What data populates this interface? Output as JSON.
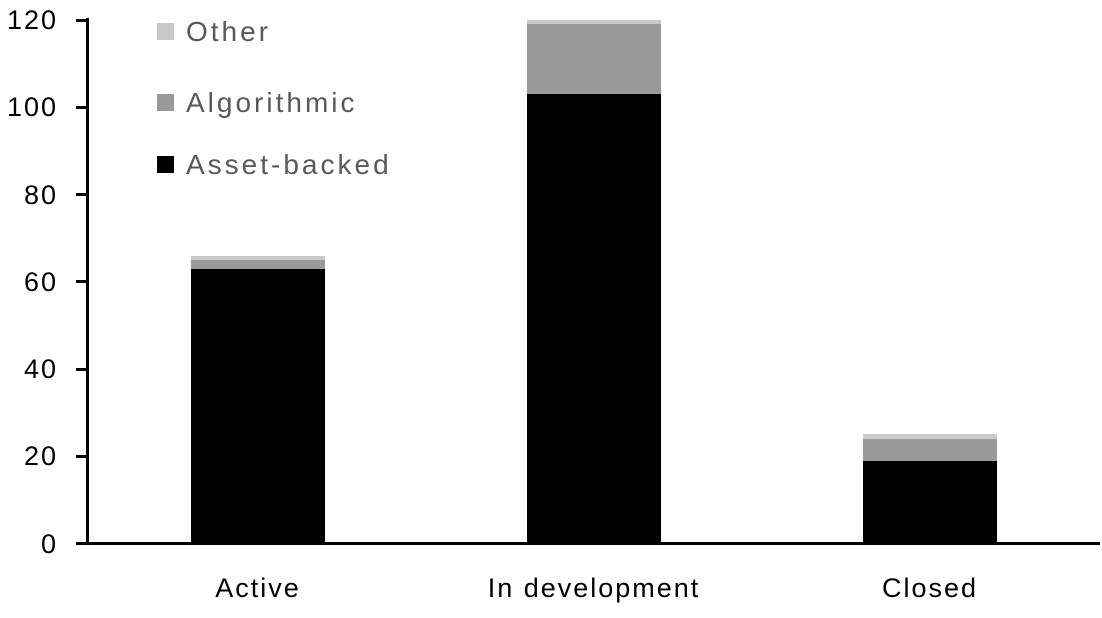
{
  "chart_data": {
    "type": "bar",
    "stacked": true,
    "title": "",
    "categories": [
      "Active",
      "In development",
      "Closed"
    ],
    "series": [
      {
        "name": "Asset-backed",
        "color": "#000000",
        "values": [
          63,
          103,
          19
        ]
      },
      {
        "name": "Algorithmic",
        "color": "#999999",
        "values": [
          2,
          16,
          5
        ]
      },
      {
        "name": "Other",
        "color": "#c9c9c9",
        "values": [
          1,
          1,
          1
        ]
      }
    ],
    "stack_totals": [
      66,
      120,
      25
    ],
    "ylim": [
      0,
      120
    ],
    "yticks": [
      0,
      20,
      40,
      60,
      80,
      100,
      120
    ],
    "xlabel": "",
    "ylabel": "",
    "grid": false,
    "legend_position": "top-left",
    "legend_order_top_to_bottom": [
      "Other",
      "Algorithmic",
      "Asset-backed"
    ],
    "colors": {
      "axis": "#000000",
      "tick_label": "#000000",
      "category_label": "#000000",
      "legend_text": "#595959",
      "background": "#ffffff"
    }
  }
}
